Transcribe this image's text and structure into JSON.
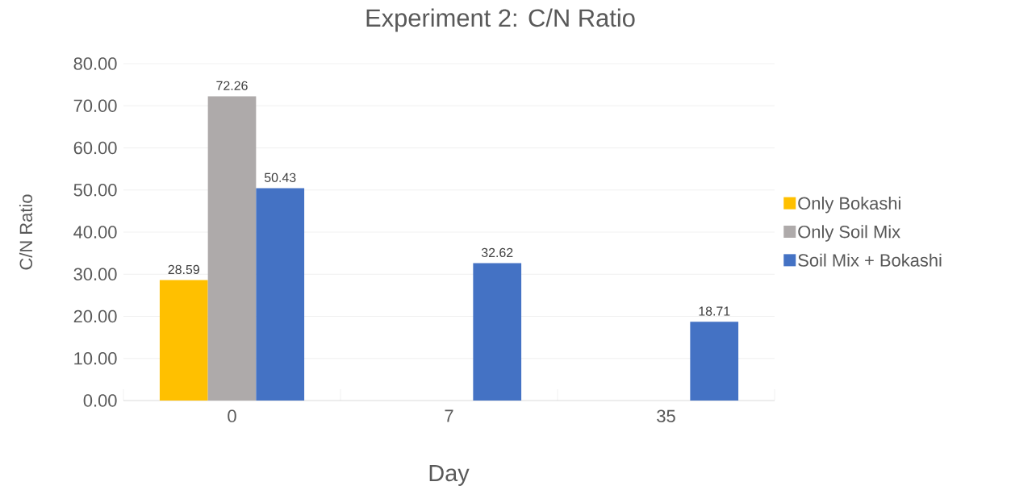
{
  "chart_data": {
    "type": "bar",
    "title": "Experiment 2: C/N Ratio",
    "xlabel": "Day",
    "ylabel": "C/N Ratio",
    "categories": [
      "0",
      "7",
      "35"
    ],
    "series": [
      {
        "name": "Only Bokashi",
        "color": "#ffc000",
        "values": [
          28.59,
          null,
          null
        ]
      },
      {
        "name": "Only Soil Mix",
        "color": "#aeaaaa",
        "values": [
          72.26,
          null,
          null
        ]
      },
      {
        "name": "Soil Mix + Bokashi",
        "color": "#4472c4",
        "values": [
          50.43,
          32.62,
          18.71
        ]
      }
    ],
    "ylim": [
      0,
      80
    ],
    "yticks": [
      {
        "value": 0,
        "label": "0.00"
      },
      {
        "value": 10,
        "label": "10.00"
      },
      {
        "value": 20,
        "label": "20.00"
      },
      {
        "value": 30,
        "label": "30.00"
      },
      {
        "value": 40,
        "label": "40.00"
      },
      {
        "value": 50,
        "label": "50.00"
      },
      {
        "value": 60,
        "label": "60.00"
      },
      {
        "value": 70,
        "label": "70.00"
      },
      {
        "value": 80,
        "label": "80.00"
      }
    ],
    "grid": "y",
    "legend": "right",
    "data_labels": true
  }
}
